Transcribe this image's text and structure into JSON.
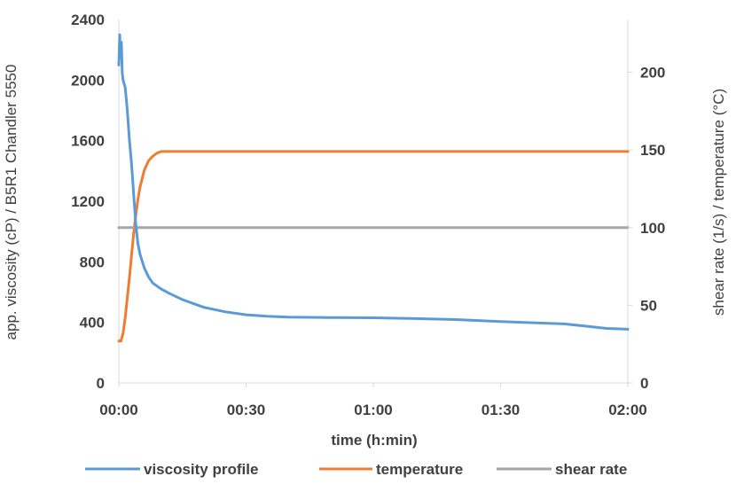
{
  "chart_data": {
    "type": "line",
    "xlabel": "time (h:min)",
    "ylabel_left": "app. viscosity (cP) / B5R1 Chandler 5550",
    "ylabel_right": "shear rate (1/s) / temperature (°C)",
    "x_unit": "minutes",
    "xlim": [
      0,
      120
    ],
    "x_ticks": [
      "00:00",
      "00:30",
      "01:00",
      "01:30",
      "02:00"
    ],
    "ylim_left": [
      0,
      2400
    ],
    "y_left_ticks": [
      "0",
      "400",
      "800",
      "1200",
      "1600",
      "2000",
      "2400"
    ],
    "ylim_right": [
      0,
      234
    ],
    "y_right_ticks": [
      "0",
      "50",
      "100",
      "150",
      "200"
    ],
    "legend_position": "bottom",
    "series": [
      {
        "name": "viscosity profile",
        "axis": "left",
        "color": "#5B9BD5",
        "x": [
          0,
          0.2,
          0.4,
          0.6,
          0.8,
          1.0,
          1.5,
          2,
          2.5,
          3,
          3.5,
          4,
          4.5,
          5,
          6,
          7,
          8,
          9,
          10,
          12,
          15,
          18,
          20,
          25,
          30,
          35,
          40,
          45,
          50,
          60,
          70,
          80,
          90,
          100,
          105,
          110,
          115,
          120
        ],
        "y": [
          2100,
          2300,
          2150,
          2250,
          2050,
          2000,
          1950,
          1800,
          1600,
          1450,
          1250,
          1050,
          920,
          850,
          760,
          700,
          660,
          640,
          620,
          590,
          550,
          520,
          500,
          470,
          450,
          440,
          435,
          433,
          432,
          430,
          425,
          418,
          405,
          395,
          390,
          375,
          360,
          355
        ]
      },
      {
        "name": "temperature",
        "axis": "right",
        "color": "#ED7D31",
        "x": [
          0,
          0.5,
          1,
          1.5,
          2,
          2.5,
          3,
          3.5,
          4,
          4.5,
          5,
          6,
          7,
          8,
          9,
          10,
          12,
          15,
          30,
          60,
          90,
          120
        ],
        "y": [
          27,
          27,
          32,
          42,
          55,
          68,
          82,
          96,
          108,
          118,
          126,
          137,
          143,
          146,
          148,
          149,
          149,
          149,
          149,
          149,
          149,
          149
        ]
      },
      {
        "name": "shear rate",
        "axis": "right",
        "color": "#A5A5A5",
        "x": [
          0,
          120
        ],
        "y": [
          100,
          100
        ]
      }
    ]
  }
}
